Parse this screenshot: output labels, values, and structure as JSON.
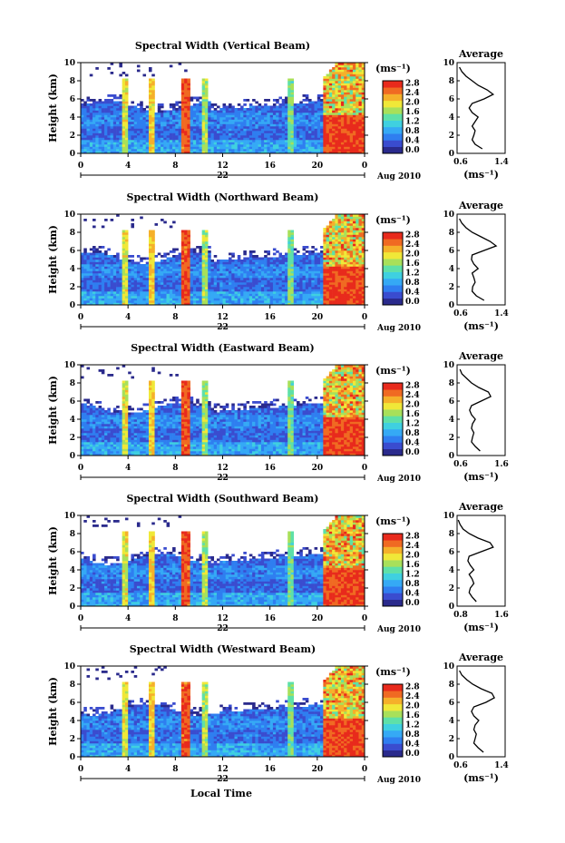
{
  "figure": {
    "xlabel": "Local Time",
    "date_label": "Aug 2010",
    "day_label": "22",
    "units_label": "(ms⁻¹)",
    "height_label": "Height (km)",
    "average_title": "Average",
    "average_units": "(ms⁻¹)"
  },
  "colors": {
    "colormap": [
      "#2a2a8c",
      "#3a4ccf",
      "#2f7ef0",
      "#35a9f5",
      "#3fd0e0",
      "#5ee0a8",
      "#a8e05a",
      "#f0e838",
      "#f5b02a",
      "#f06a22",
      "#e82a1c"
    ],
    "line": "#000000"
  },
  "chart_data": [
    {
      "type": "heatmap",
      "title": "Spectral Width (Vertical Beam)",
      "x_ticks": [
        "0",
        "4",
        "8",
        "12",
        "16",
        "20",
        "0"
      ],
      "y_ticks": [
        "0",
        "2",
        "4",
        "6",
        "8",
        "10"
      ],
      "xlim": [
        0,
        24
      ],
      "ylim": [
        0,
        10
      ],
      "colorbar_ticks": [
        "0.0",
        "0.4",
        "0.8",
        "1.2",
        "1.6",
        "2.0",
        "2.4",
        "2.8"
      ],
      "colorbar_range": [
        0,
        3.2
      ],
      "profile": {
        "title": "Average",
        "x_ticks": [
          "0.6",
          "1.4"
        ],
        "y_ticks": [
          "0",
          "2",
          "4",
          "6",
          "8",
          "10"
        ],
        "xlim": [
          0.6,
          1.4
        ],
        "height": [
          0.5,
          1,
          1.5,
          2,
          2.5,
          3,
          3.5,
          4,
          4.5,
          5,
          5.5,
          6,
          6.5,
          7,
          7.5,
          8,
          8.5,
          9,
          9.5
        ],
        "values": [
          1.02,
          0.9,
          0.85,
          0.88,
          0.9,
          0.85,
          0.9,
          0.95,
          0.85,
          0.8,
          0.85,
          1.05,
          1.2,
          1.1,
          0.95,
          0.85,
          0.75,
          0.68,
          0.64
        ]
      }
    },
    {
      "type": "heatmap",
      "title": "Spectral Width (Northward Beam)",
      "x_ticks": [
        "0",
        "4",
        "8",
        "12",
        "16",
        "20",
        "0"
      ],
      "y_ticks": [
        "0",
        "2",
        "4",
        "6",
        "8",
        "10"
      ],
      "xlim": [
        0,
        24
      ],
      "ylim": [
        0,
        10
      ],
      "colorbar_ticks": [
        "0.0",
        "0.4",
        "0.8",
        "1.2",
        "1.6",
        "2.0",
        "2.4",
        "2.8"
      ],
      "colorbar_range": [
        0,
        3.2
      ],
      "profile": {
        "title": "Average",
        "x_ticks": [
          "0.6",
          "1.4"
        ],
        "y_ticks": [
          "0",
          "2",
          "4",
          "6",
          "8",
          "10"
        ],
        "xlim": [
          0.6,
          1.4
        ],
        "height": [
          0.5,
          1,
          1.5,
          2,
          2.5,
          3,
          3.5,
          4,
          4.5,
          5,
          5.5,
          6,
          6.5,
          7,
          7.5,
          8,
          8.5,
          9,
          9.5
        ],
        "values": [
          1.05,
          0.92,
          0.85,
          0.86,
          0.9,
          0.88,
          0.85,
          0.95,
          0.88,
          0.84,
          0.85,
          1.05,
          1.25,
          1.15,
          1.0,
          0.85,
          0.75,
          0.68,
          0.64
        ]
      }
    },
    {
      "type": "heatmap",
      "title": "Spectral Width (Eastward Beam)",
      "x_ticks": [
        "0",
        "4",
        "8",
        "12",
        "16",
        "20",
        "0"
      ],
      "y_ticks": [
        "0",
        "2",
        "4",
        "6",
        "8",
        "10"
      ],
      "xlim": [
        0,
        24
      ],
      "ylim": [
        0,
        10
      ],
      "colorbar_ticks": [
        "0.0",
        "0.4",
        "0.8",
        "1.2",
        "1.6",
        "2.0",
        "2.4",
        "2.8"
      ],
      "colorbar_range": [
        0,
        3.2
      ],
      "profile": {
        "title": "Average",
        "x_ticks": [
          "0.6",
          "1.6"
        ],
        "y_ticks": [
          "0",
          "2",
          "4",
          "6",
          "8",
          "10"
        ],
        "xlim": [
          0.6,
          1.6
        ],
        "height": [
          0.5,
          1,
          1.5,
          2,
          2.5,
          3,
          3.5,
          4,
          4.5,
          5,
          5.5,
          6,
          6.5,
          7,
          7.5,
          8,
          8.5,
          9,
          9.5
        ],
        "values": [
          1.08,
          0.98,
          0.9,
          0.92,
          0.95,
          0.9,
          0.92,
          0.98,
          0.9,
          0.86,
          0.9,
          1.1,
          1.3,
          1.25,
          1.05,
          0.9,
          0.8,
          0.7,
          0.66
        ]
      }
    },
    {
      "type": "heatmap",
      "title": "Spectral Width (Southward Beam)",
      "x_ticks": [
        "0",
        "4",
        "8",
        "12",
        "16",
        "20",
        "0"
      ],
      "y_ticks": [
        "0",
        "2",
        "4",
        "6",
        "8",
        "10"
      ],
      "xlim": [
        0,
        24
      ],
      "ylim": [
        0,
        10
      ],
      "colorbar_ticks": [
        "0.0",
        "0.4",
        "0.8",
        "1.2",
        "1.6",
        "2.0",
        "2.4",
        "2.8"
      ],
      "colorbar_range": [
        0,
        3.2
      ],
      "profile": {
        "title": "Average",
        "x_ticks": [
          "0.8",
          "1.6"
        ],
        "y_ticks": [
          "0",
          "2",
          "4",
          "6",
          "8",
          "10"
        ],
        "xlim": [
          0.8,
          1.6
        ],
        "height": [
          0.5,
          1,
          1.5,
          2,
          2.5,
          3,
          3.5,
          4,
          4.5,
          5,
          5.5,
          6,
          6.5,
          7,
          7.5,
          8,
          8.5,
          9,
          9.5
        ],
        "values": [
          1.12,
          1.05,
          1.0,
          1.02,
          1.08,
          1.05,
          1.0,
          1.08,
          1.02,
          0.98,
          1.0,
          1.2,
          1.4,
          1.35,
          1.15,
          1.0,
          0.9,
          0.85,
          0.82
        ]
      }
    },
    {
      "type": "heatmap",
      "title": "Spectral Width (Westward Beam)",
      "x_ticks": [
        "0",
        "4",
        "8",
        "12",
        "16",
        "20",
        "0"
      ],
      "y_ticks": [
        "0",
        "2",
        "4",
        "6",
        "8",
        "10"
      ],
      "xlim": [
        0,
        24
      ],
      "ylim": [
        0,
        10
      ],
      "colorbar_ticks": [
        "0.0",
        "0.4",
        "0.8",
        "1.2",
        "1.6",
        "2.0",
        "2.4",
        "2.8"
      ],
      "colorbar_range": [
        0,
        3.2
      ],
      "profile": {
        "title": "Average",
        "x_ticks": [
          "0.6",
          "1.4"
        ],
        "y_ticks": [
          "0",
          "2",
          "4",
          "6",
          "8",
          "10"
        ],
        "xlim": [
          0.6,
          1.4
        ],
        "height": [
          0.5,
          1,
          1.5,
          2,
          2.5,
          3,
          3.5,
          4,
          4.5,
          5,
          5.5,
          6,
          6.5,
          7,
          7.5,
          8,
          8.5,
          9,
          9.5
        ],
        "values": [
          1.04,
          0.95,
          0.88,
          0.9,
          0.92,
          0.88,
          0.9,
          0.96,
          0.88,
          0.84,
          0.88,
          1.08,
          1.22,
          1.18,
          1.0,
          0.86,
          0.76,
          0.68,
          0.64
        ]
      }
    }
  ]
}
